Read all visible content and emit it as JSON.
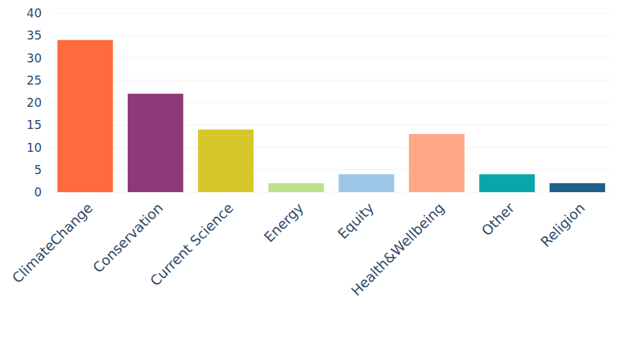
{
  "chart_data": {
    "type": "bar",
    "categories": [
      "ClimateChange",
      "Conservation",
      "Current Science",
      "Energy",
      "Equity",
      "Health&Wellbeing",
      "Other",
      "Religion"
    ],
    "values": [
      34,
      22,
      14,
      2,
      4,
      13,
      4,
      2
    ],
    "colors": [
      "#ff6b3d",
      "#8e3a7a",
      "#d6c82a",
      "#bde08f",
      "#9cc5e8",
      "#ffa888",
      "#0aa6ad",
      "#1e5f8c"
    ],
    "ylim": [
      0,
      40
    ],
    "yticks": [
      0,
      5,
      10,
      15,
      20,
      25,
      30,
      35,
      40
    ],
    "grid": true
  }
}
